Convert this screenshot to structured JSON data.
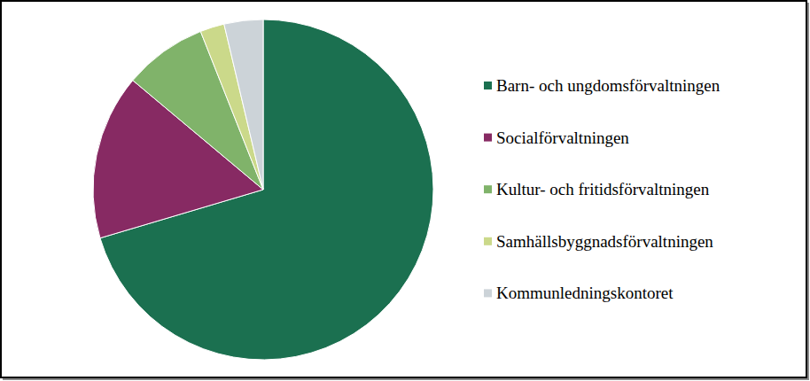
{
  "chart_data": {
    "type": "pie",
    "categories": [
      "Barn- och ungdomsförvaltningen",
      "Socialförvaltningen",
      "Kultur- och fritidsförvaltningen",
      "Samhällsbyggnadsförvaltningen",
      "Kommunledningskontoret"
    ],
    "values": [
      70.4,
      15.7,
      7.9,
      2.3,
      3.7
    ],
    "colors": [
      "#1b7050",
      "#872a63",
      "#80b36a",
      "#cbd98a",
      "#ccd3d8"
    ],
    "legend": "right"
  }
}
